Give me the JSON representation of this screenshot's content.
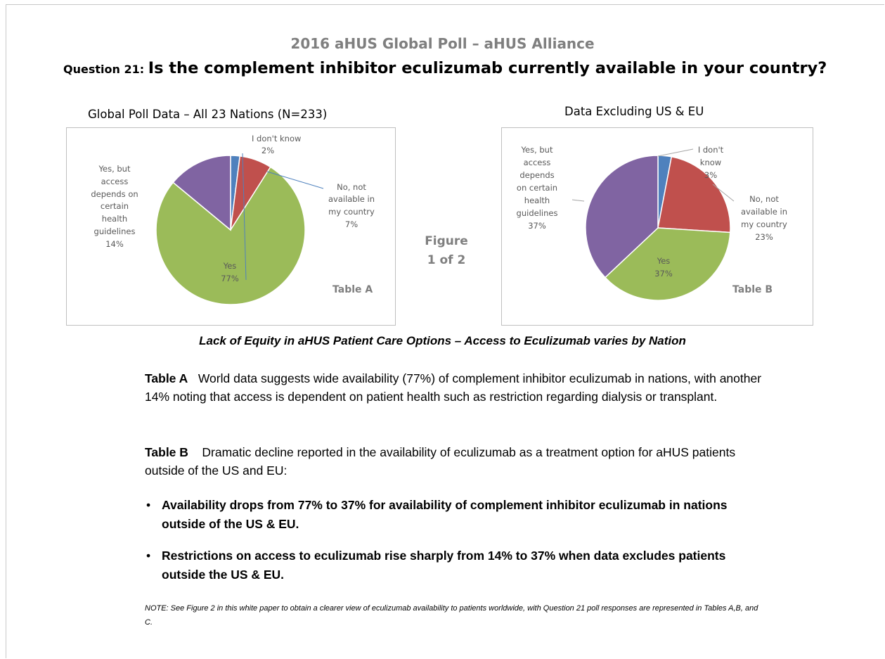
{
  "header": {
    "title": "2016 aHUS Global Poll – aHUS Alliance",
    "question_number": "Question 21:",
    "question_text": "Is the complement inhibitor eculizumab currently available in your country?"
  },
  "figure_label": {
    "line1": "Figure",
    "line2": "1 of 2"
  },
  "chart_data": [
    {
      "type": "pie",
      "title": "Global Poll Data – All 23 Nations (N=233)",
      "table_label": "Table A",
      "slices": [
        {
          "name": "I don't know",
          "value": 2,
          "label": "2%",
          "color": "#4f81bd"
        },
        {
          "name": "No, not available in my country",
          "value": 7,
          "label": "7%",
          "color": "#c0504d"
        },
        {
          "name": "Yes",
          "value": 77,
          "label": "77%",
          "color": "#9bbb59"
        },
        {
          "name": "Yes, but access depends on certain health guidelines",
          "value": 14,
          "label": "14%",
          "color": "#8064a2"
        }
      ]
    },
    {
      "type": "pie",
      "title": "Data Excluding US & EU",
      "table_label": "Table B",
      "slices": [
        {
          "name": "I don't know",
          "value": 3,
          "label": "3%",
          "color": "#4f81bd"
        },
        {
          "name": "No, not available in my country",
          "value": 23,
          "label": "23%",
          "color": "#c0504d"
        },
        {
          "name": "Yes",
          "value": 37,
          "label": "37%",
          "color": "#9bbb59"
        },
        {
          "name": "Yes, but access depends on certain health guidelines",
          "value": 37,
          "label": "37%",
          "color": "#8064a2"
        }
      ]
    }
  ],
  "subtitle": "Lack of Equity in aHUS Patient Care Options – Access to Eculizumab varies by Nation",
  "table_a": {
    "label": "Table A",
    "text": "World data suggests wide availability  (77%) of complement inhibitor eculizumab in nations, with another 14% noting that access is dependent on patient health such as restriction regarding dialysis or transplant."
  },
  "table_b": {
    "label": "Table B",
    "text": "Dramatic decline reported in the availability of eculizumab as a treatment option for aHUS patients  outside of the US and EU:"
  },
  "bullets": [
    "Availability drops from 77% to 37% for availability of complement inhibitor eculizumab in nations outside of the US & EU.",
    "Restrictions on access to eculizumab rise sharply from 14% to 37% when data excludes patients outside the US & EU."
  ],
  "note": "NOTE:  See Figure 2  in this white paper to obtain a clearer view of eculizumab availability to patients worldwide, with Question 21 poll responses  are represented  in Tables  A,B, and C."
}
